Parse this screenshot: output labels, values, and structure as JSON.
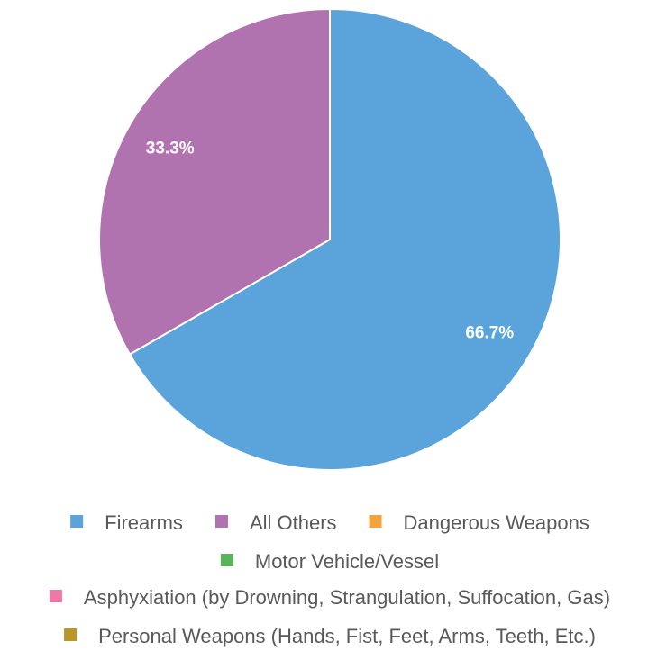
{
  "chart_data": {
    "type": "pie",
    "title": "",
    "slices": [
      {
        "label": "Firearms",
        "value": 66.7,
        "display": "66.7%",
        "color": "#5ba4db"
      },
      {
        "label": "All Others",
        "value": 33.3,
        "display": "33.3%",
        "color": "#b173b0"
      },
      {
        "label": "Dangerous Weapons",
        "value": 0,
        "display": "",
        "color": "#f5a33b"
      },
      {
        "label": "Motor Vehicle/Vessel",
        "value": 0,
        "display": "",
        "color": "#5ab45a"
      },
      {
        "label": "Asphyxiation (by Drowning, Strangulation, Suffocation, Gas)",
        "value": 0,
        "display": "",
        "color": "#f078a8"
      },
      {
        "label": "Personal Weapons (Hands, Fist, Feet, Arms, Teeth, Etc.)",
        "value": 0,
        "display": "",
        "color": "#b8962a"
      }
    ],
    "legend_position": "bottom"
  }
}
